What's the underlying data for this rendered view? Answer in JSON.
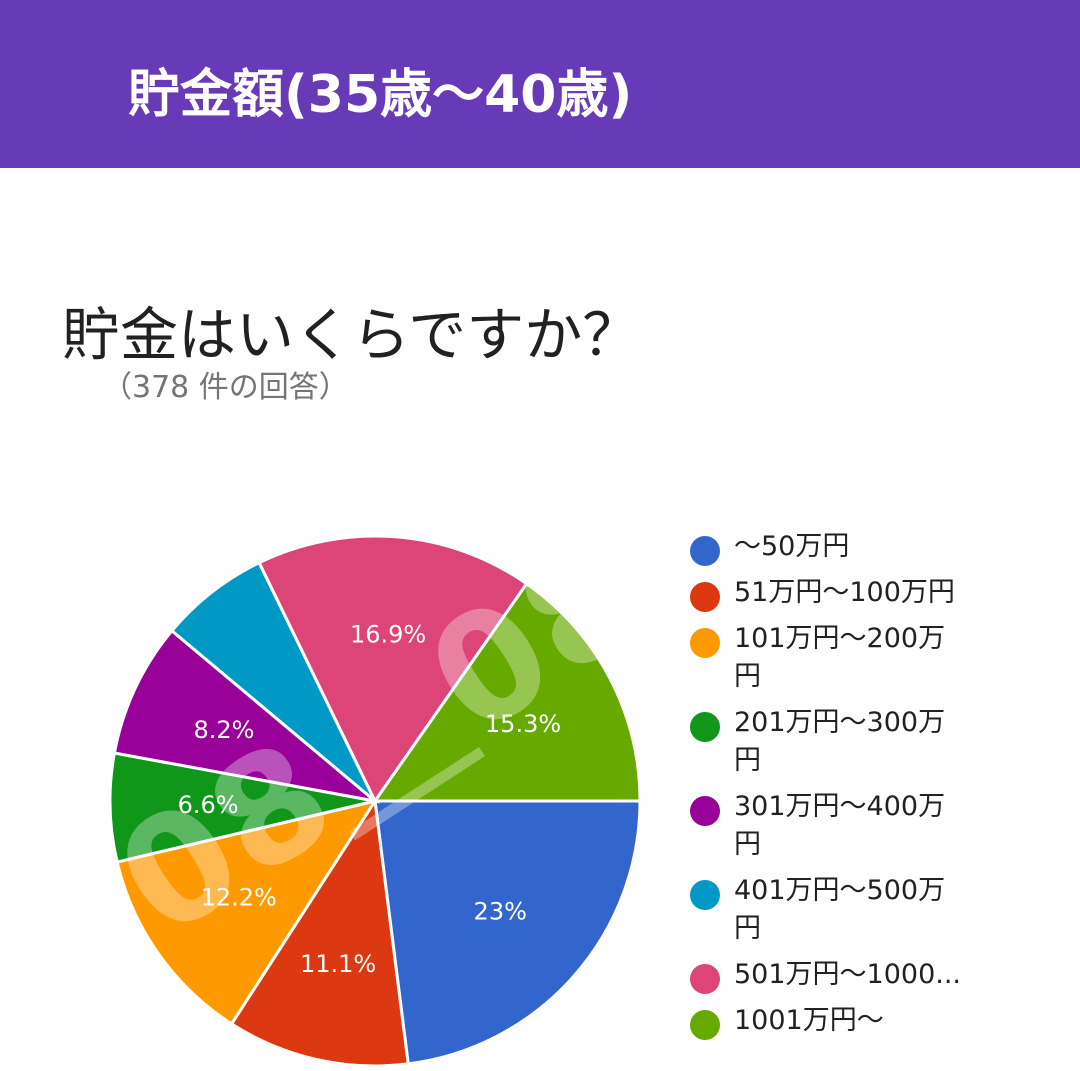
{
  "header": {
    "title": "貯金額(35歳〜40歳)"
  },
  "question": {
    "title": "貯金はいくらですか？",
    "response_count": "（378 件の回答）"
  },
  "watermark": "08＿0825",
  "chart_data": {
    "type": "pie",
    "title": "貯金はいくらですか？",
    "total_responses": 378,
    "legend_position": "right",
    "slices": [
      {
        "label": "〜50万円",
        "value": 23,
        "display": "23%",
        "color": "#3366cc"
      },
      {
        "label": "51万円〜100万円",
        "value": 11.1,
        "display": "11.1%",
        "color": "#dc3912"
      },
      {
        "label": "101万円〜200万円",
        "value": 12.2,
        "display": "12.2%",
        "color": "#ff9900"
      },
      {
        "label": "201万円〜300万円",
        "value": 6.6,
        "display": "6.6%",
        "color": "#109618"
      },
      {
        "label": "301万円〜400万円",
        "value": 8.2,
        "display": "8.2%",
        "color": "#990099"
      },
      {
        "label": "401万円〜500万円",
        "value": 6.7,
        "display": "",
        "color": "#0099c6"
      },
      {
        "label": "501万円〜1000...",
        "value": 16.9,
        "display": "16.9%",
        "color": "#dd4477"
      },
      {
        "label": "1001万円〜",
        "value": 15.3,
        "display": "15.3%",
        "color": "#66aa00"
      }
    ]
  }
}
